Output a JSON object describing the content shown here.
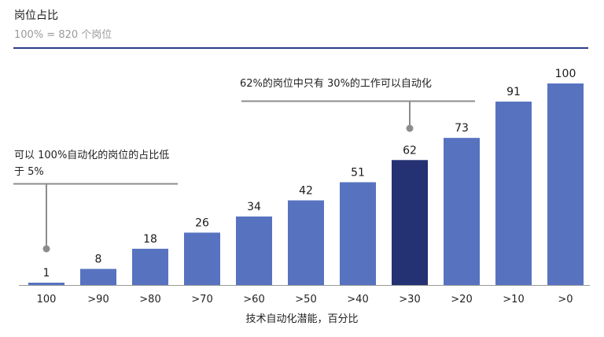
{
  "header": {
    "title": "岗位占比",
    "subtitle": "100% = 820 个岗位"
  },
  "annotations": [
    {
      "text": "62%的岗位中只有 30%的工作可以自动化",
      "category": ">30"
    },
    {
      "text": "可以 100%自动化的岗位的占比低于 5%",
      "category": "100"
    }
  ],
  "colors": {
    "bar": "#5773c0",
    "highlight": "#243173",
    "rule": "#2c3e8c",
    "annotation_line": "#8c8c8c"
  },
  "chart_data": {
    "type": "bar",
    "categories": [
      "100",
      ">90",
      ">80",
      ">70",
      ">60",
      ">50",
      ">40",
      ">30",
      ">20",
      ">10",
      ">0"
    ],
    "values": [
      1,
      8,
      18,
      26,
      34,
      42,
      51,
      62,
      73,
      91,
      100
    ],
    "highlight_category": ">30",
    "xlabel": "技术自动化潜能，百分比",
    "ylim": [
      0,
      100
    ],
    "grid": false,
    "legend": "none"
  }
}
